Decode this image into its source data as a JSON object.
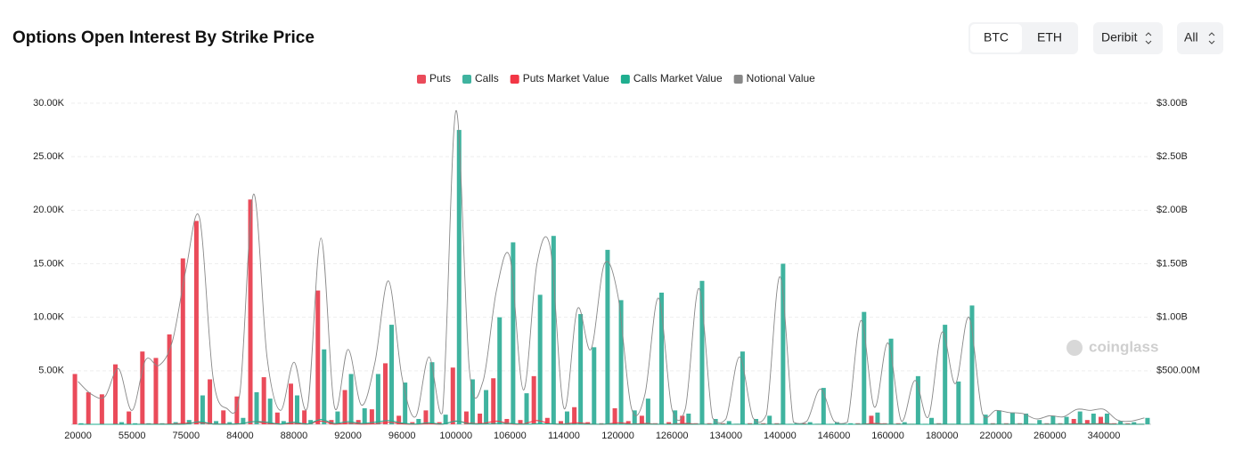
{
  "header": {
    "title": "Options Open Interest By Strike Price",
    "tabs": [
      "BTC",
      "ETH"
    ],
    "exchange": "Deribit",
    "filter": "All"
  },
  "watermark": "coinglass",
  "chart_data": {
    "type": "bar",
    "categories": [
      "20000",
      null,
      null,
      null,
      "55000",
      null,
      null,
      null,
      "75000",
      null,
      null,
      null,
      "84000",
      null,
      null,
      null,
      "88000",
      null,
      null,
      null,
      "92000",
      null,
      null,
      null,
      "96000",
      null,
      null,
      null,
      "100000",
      null,
      null,
      null,
      "106000",
      null,
      null,
      null,
      "114000",
      null,
      null,
      null,
      "120000",
      null,
      null,
      null,
      "126000",
      null,
      null,
      null,
      "134000",
      null,
      null,
      null,
      "140000",
      null,
      null,
      null,
      "146000",
      null,
      null,
      null,
      "160000",
      null,
      null,
      null,
      "180000",
      null,
      null,
      null,
      "220000",
      null,
      null,
      null,
      "260000",
      null,
      null,
      null,
      "340000",
      null,
      null,
      null
    ],
    "series": [
      {
        "name": "Puts",
        "color": "#ea4b5a",
        "kind": "bar",
        "values": [
          4700,
          3000,
          2800,
          5600,
          1200,
          6800,
          6200,
          8400,
          15500,
          19000,
          4200,
          1300,
          2600,
          21000,
          4400,
          1100,
          3800,
          1300,
          12500,
          400,
          3200,
          400,
          1400,
          5700,
          800,
          200,
          1300,
          200,
          5300,
          1200,
          1000,
          4300,
          500,
          400,
          4500,
          600,
          300,
          1600,
          200,
          100,
          1500,
          300,
          800,
          100,
          200,
          800,
          100,
          100,
          100,
          50,
          100,
          100,
          100,
          50,
          100,
          50,
          50,
          50,
          100,
          800,
          100,
          100,
          50,
          50,
          100,
          50,
          50,
          50,
          100,
          100,
          100,
          50,
          100,
          100,
          500,
          400,
          700,
          100,
          100,
          50
        ]
      },
      {
        "name": "Calls",
        "color": "#3fb39f",
        "kind": "bar",
        "values": [
          100,
          0,
          0,
          200,
          100,
          100,
          100,
          200,
          400,
          2700,
          300,
          200,
          600,
          3000,
          2400,
          300,
          2700,
          400,
          7000,
          1200,
          4700,
          1500,
          4700,
          9300,
          3900,
          500,
          5800,
          900,
          27500,
          4200,
          3200,
          10000,
          17000,
          2900,
          12100,
          17600,
          1200,
          10300,
          7200,
          16300,
          11600,
          1300,
          2400,
          12300,
          1300,
          1000,
          13400,
          500,
          300,
          6800,
          500,
          800,
          15000,
          100,
          200,
          3400,
          200,
          100,
          10500,
          1100,
          8000,
          200,
          4500,
          600,
          9300,
          4000,
          11100,
          900,
          1300,
          1100,
          1000,
          400,
          800,
          700,
          1200,
          1000,
          1000,
          300,
          200,
          600
        ]
      },
      {
        "name": "Puts Market Value",
        "color": "#f23645",
        "kind": "line",
        "axis": "y2",
        "values": [
          0,
          0,
          0,
          1000000.0,
          0,
          2000000.0,
          2000000.0,
          4000000.0,
          10000000.0,
          15000000.0,
          4000000.0,
          2000000.0,
          4000000.0,
          25000000.0,
          8000000.0,
          2000000.0,
          8000000.0,
          3000000.0,
          30000000.0,
          1000000.0,
          10000000.0,
          2000000.0,
          5000000.0,
          20000000.0,
          4000000.0,
          1000000.0,
          6000000.0,
          1000000.0,
          30000000.0,
          10000000.0,
          8000000.0,
          30000000.0,
          5000000.0,
          4000000.0,
          35000000.0,
          6000000.0,
          3000000.0,
          15000000.0,
          2000000.0,
          1000000.0,
          15000000.0,
          3000000.0,
          8000000.0,
          1000000.0,
          2000000.0,
          8000000.0,
          1000000.0,
          1000000.0,
          1000000.0,
          0,
          1000000.0,
          1000000.0,
          1000000.0,
          0,
          1000000.0,
          0,
          0,
          0,
          1000000.0,
          8000000.0,
          1000000.0,
          1000000.0,
          0,
          0,
          1000000.0,
          0,
          0,
          0,
          1000000.0,
          1000000.0,
          1000000.0,
          0,
          1000000.0,
          1000000.0,
          5000000.0,
          4000000.0,
          7000000.0,
          1000000.0,
          1000000.0,
          0
        ]
      },
      {
        "name": "Calls Market Value",
        "color": "#1fae8f",
        "kind": "line",
        "axis": "y2",
        "values": [
          0,
          0,
          0,
          0,
          0,
          0,
          0,
          0,
          2000000.0,
          25000000.0,
          2000000.0,
          1000000.0,
          5000000.0,
          25000000.0,
          20000000.0,
          2000000.0,
          20000000.0,
          3000000.0,
          45000000.0,
          8000000.0,
          25000000.0,
          8000000.0,
          20000000.0,
          35000000.0,
          12000000.0,
          2000000.0,
          15000000.0,
          2000000.0,
          30000000.0,
          5000000.0,
          3000000.0,
          8000000.0,
          8000000.0,
          1000000.0,
          4000000.0,
          4000000.0,
          0,
          2000000.0,
          1000000.0,
          2000000.0,
          1000000.0,
          0,
          1000000.0,
          1000000.0,
          0,
          0,
          1000000.0,
          0,
          0,
          1000000.0,
          0,
          0,
          1000000.0,
          0,
          0,
          1000000.0,
          0,
          0,
          1000000.0,
          0,
          1000000.0,
          0,
          1000000.0,
          0,
          1000000.0,
          1000000.0,
          1000000.0,
          0,
          1000000.0,
          1000000.0,
          1000000.0,
          0,
          1000000.0,
          1000000.0,
          1000000.0,
          1000000.0,
          1000000.0,
          0,
          0,
          1000000.0
        ]
      },
      {
        "name": "Notional Value",
        "color": "#888888",
        "kind": "line",
        "axis": "y2",
        "values": [
          400000000.0,
          280000000.0,
          260000000.0,
          520000000.0,
          130000000.0,
          600000000.0,
          550000000.0,
          780000000.0,
          1450000000.0,
          1930000000.0,
          440000000.0,
          150000000.0,
          300000000.0,
          2150000000.0,
          630000000.0,
          130000000.0,
          580000000.0,
          160000000.0,
          1740000000.0,
          160000000.0,
          700000000.0,
          180000000.0,
          580000000.0,
          1340000000.0,
          440000000.0,
          70000000.0,
          630000000.0,
          110000000.0,
          2930000000.0,
          500000000.0,
          400000000.0,
          1250000000.0,
          1560000000.0,
          320000000.0,
          1500000000.0,
          1640000000.0,
          150000000.0,
          1080000000.0,
          700000000.0,
          1500000000.0,
          1200000000.0,
          150000000.0,
          280000000.0,
          1180000000.0,
          140000000.0,
          150000000.0,
          1270000000.0,
          60000000.0,
          50000000.0,
          630000000.0,
          60000000.0,
          90000000.0,
          1380000000.0,
          20000000.0,
          30000000.0,
          330000000.0,
          30000000.0,
          20000000.0,
          970000000.0,
          160000000.0,
          760000000.0,
          30000000.0,
          410000000.0,
          70000000.0,
          860000000.0,
          380000000.0,
          1000000000.0,
          100000000.0,
          130000000.0,
          110000000.0,
          100000000.0,
          50000000.0,
          80000000.0,
          70000000.0,
          140000000.0,
          130000000.0,
          140000000.0,
          40000000.0,
          30000000.0,
          60000000.0
        ]
      }
    ],
    "ylim": [
      0,
      30000
    ],
    "yticks": [
      {
        "value": 5000,
        "label": "5.00K"
      },
      {
        "value": 10000,
        "label": "10.00K"
      },
      {
        "value": 15000,
        "label": "15.00K"
      },
      {
        "value": 20000,
        "label": "20.00K"
      },
      {
        "value": 25000,
        "label": "25.00K"
      },
      {
        "value": 30000,
        "label": "30.00K"
      }
    ],
    "y2lim": [
      0,
      3000000000
    ],
    "y2ticks": [
      {
        "value": 500000000,
        "label": "$500.00M"
      },
      {
        "value": 1000000000,
        "label": "$1.00B"
      },
      {
        "value": 1500000000,
        "label": "$1.50B"
      },
      {
        "value": 2000000000,
        "label": "$2.00B"
      },
      {
        "value": 2500000000,
        "label": "$2.50B"
      },
      {
        "value": 3000000000,
        "label": "$3.00B"
      }
    ],
    "grid": true
  }
}
